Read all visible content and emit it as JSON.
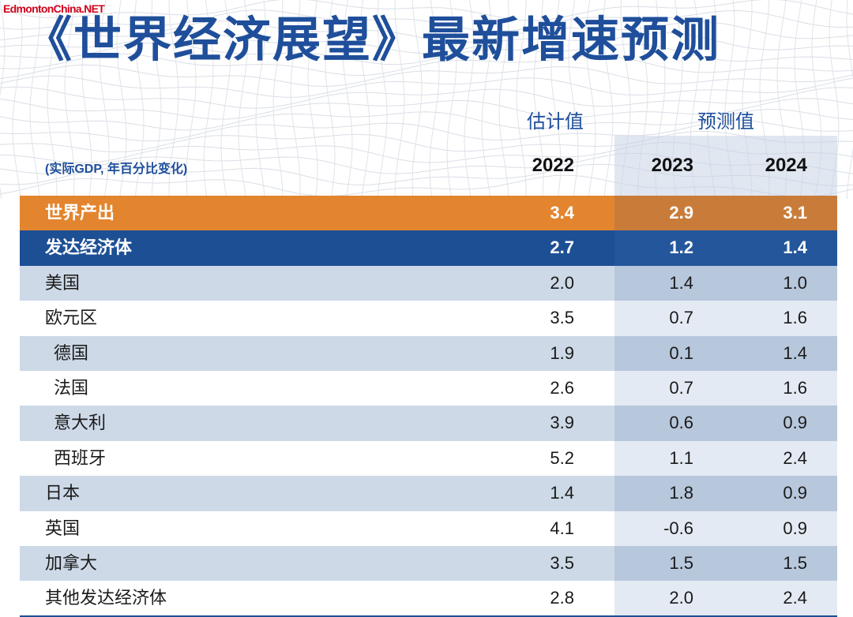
{
  "watermark": "EdmontonChina.NET",
  "colors": {
    "title": "#1f4f9b",
    "watermark": "#d0021b",
    "orange_row": "#e3852e",
    "orange_row_forecast": "#c97c3a",
    "blue_row": "#1d4f95",
    "blue_row_forecast": "#24569b",
    "shaded_row": "#cdd9e7",
    "shaded_row_forecast": "#b7c7dc",
    "plain_row": "#ffffff",
    "plain_row_forecast": "#e3eaf3"
  },
  "chart_data": {
    "type": "table",
    "title": "《世界经济展望》最新增速预测",
    "note": "(实际GDP, 年百分比变化)",
    "column_groups": [
      {
        "label": "估计值",
        "columns": [
          "2022"
        ]
      },
      {
        "label": "预测值",
        "columns": [
          "2023",
          "2024"
        ]
      }
    ],
    "columns": [
      "2022",
      "2023",
      "2024"
    ],
    "rows": [
      {
        "label": "世界产出",
        "values": [
          "3.4",
          "2.9",
          "3.1"
        ],
        "highlight": "orange",
        "level": 0
      },
      {
        "label": "发达经济体",
        "values": [
          "2.7",
          "1.2",
          "1.4"
        ],
        "highlight": "blue",
        "level": 0
      },
      {
        "label": "美国",
        "values": [
          "2.0",
          "1.4",
          "1.0"
        ],
        "highlight": null,
        "level": 0
      },
      {
        "label": "欧元区",
        "values": [
          "3.5",
          "0.7",
          "1.6"
        ],
        "highlight": null,
        "level": 0
      },
      {
        "label": "德国",
        "values": [
          "1.9",
          "0.1",
          "1.4"
        ],
        "highlight": null,
        "level": 1
      },
      {
        "label": "法国",
        "values": [
          "2.6",
          "0.7",
          "1.6"
        ],
        "highlight": null,
        "level": 1
      },
      {
        "label": "意大利",
        "values": [
          "3.9",
          "0.6",
          "0.9"
        ],
        "highlight": null,
        "level": 1
      },
      {
        "label": "西班牙",
        "values": [
          "5.2",
          "1.1",
          "2.4"
        ],
        "highlight": null,
        "level": 1
      },
      {
        "label": "日本",
        "values": [
          "1.4",
          "1.8",
          "0.9"
        ],
        "highlight": null,
        "level": 0
      },
      {
        "label": "英国",
        "values": [
          "4.1",
          "-0.6",
          "0.9"
        ],
        "highlight": null,
        "level": 0
      },
      {
        "label": "加拿大",
        "values": [
          "3.5",
          "1.5",
          "1.5"
        ],
        "highlight": null,
        "level": 0
      },
      {
        "label": "其他发达经济体",
        "values": [
          "2.8",
          "2.0",
          "2.4"
        ],
        "highlight": null,
        "level": 0
      }
    ]
  }
}
